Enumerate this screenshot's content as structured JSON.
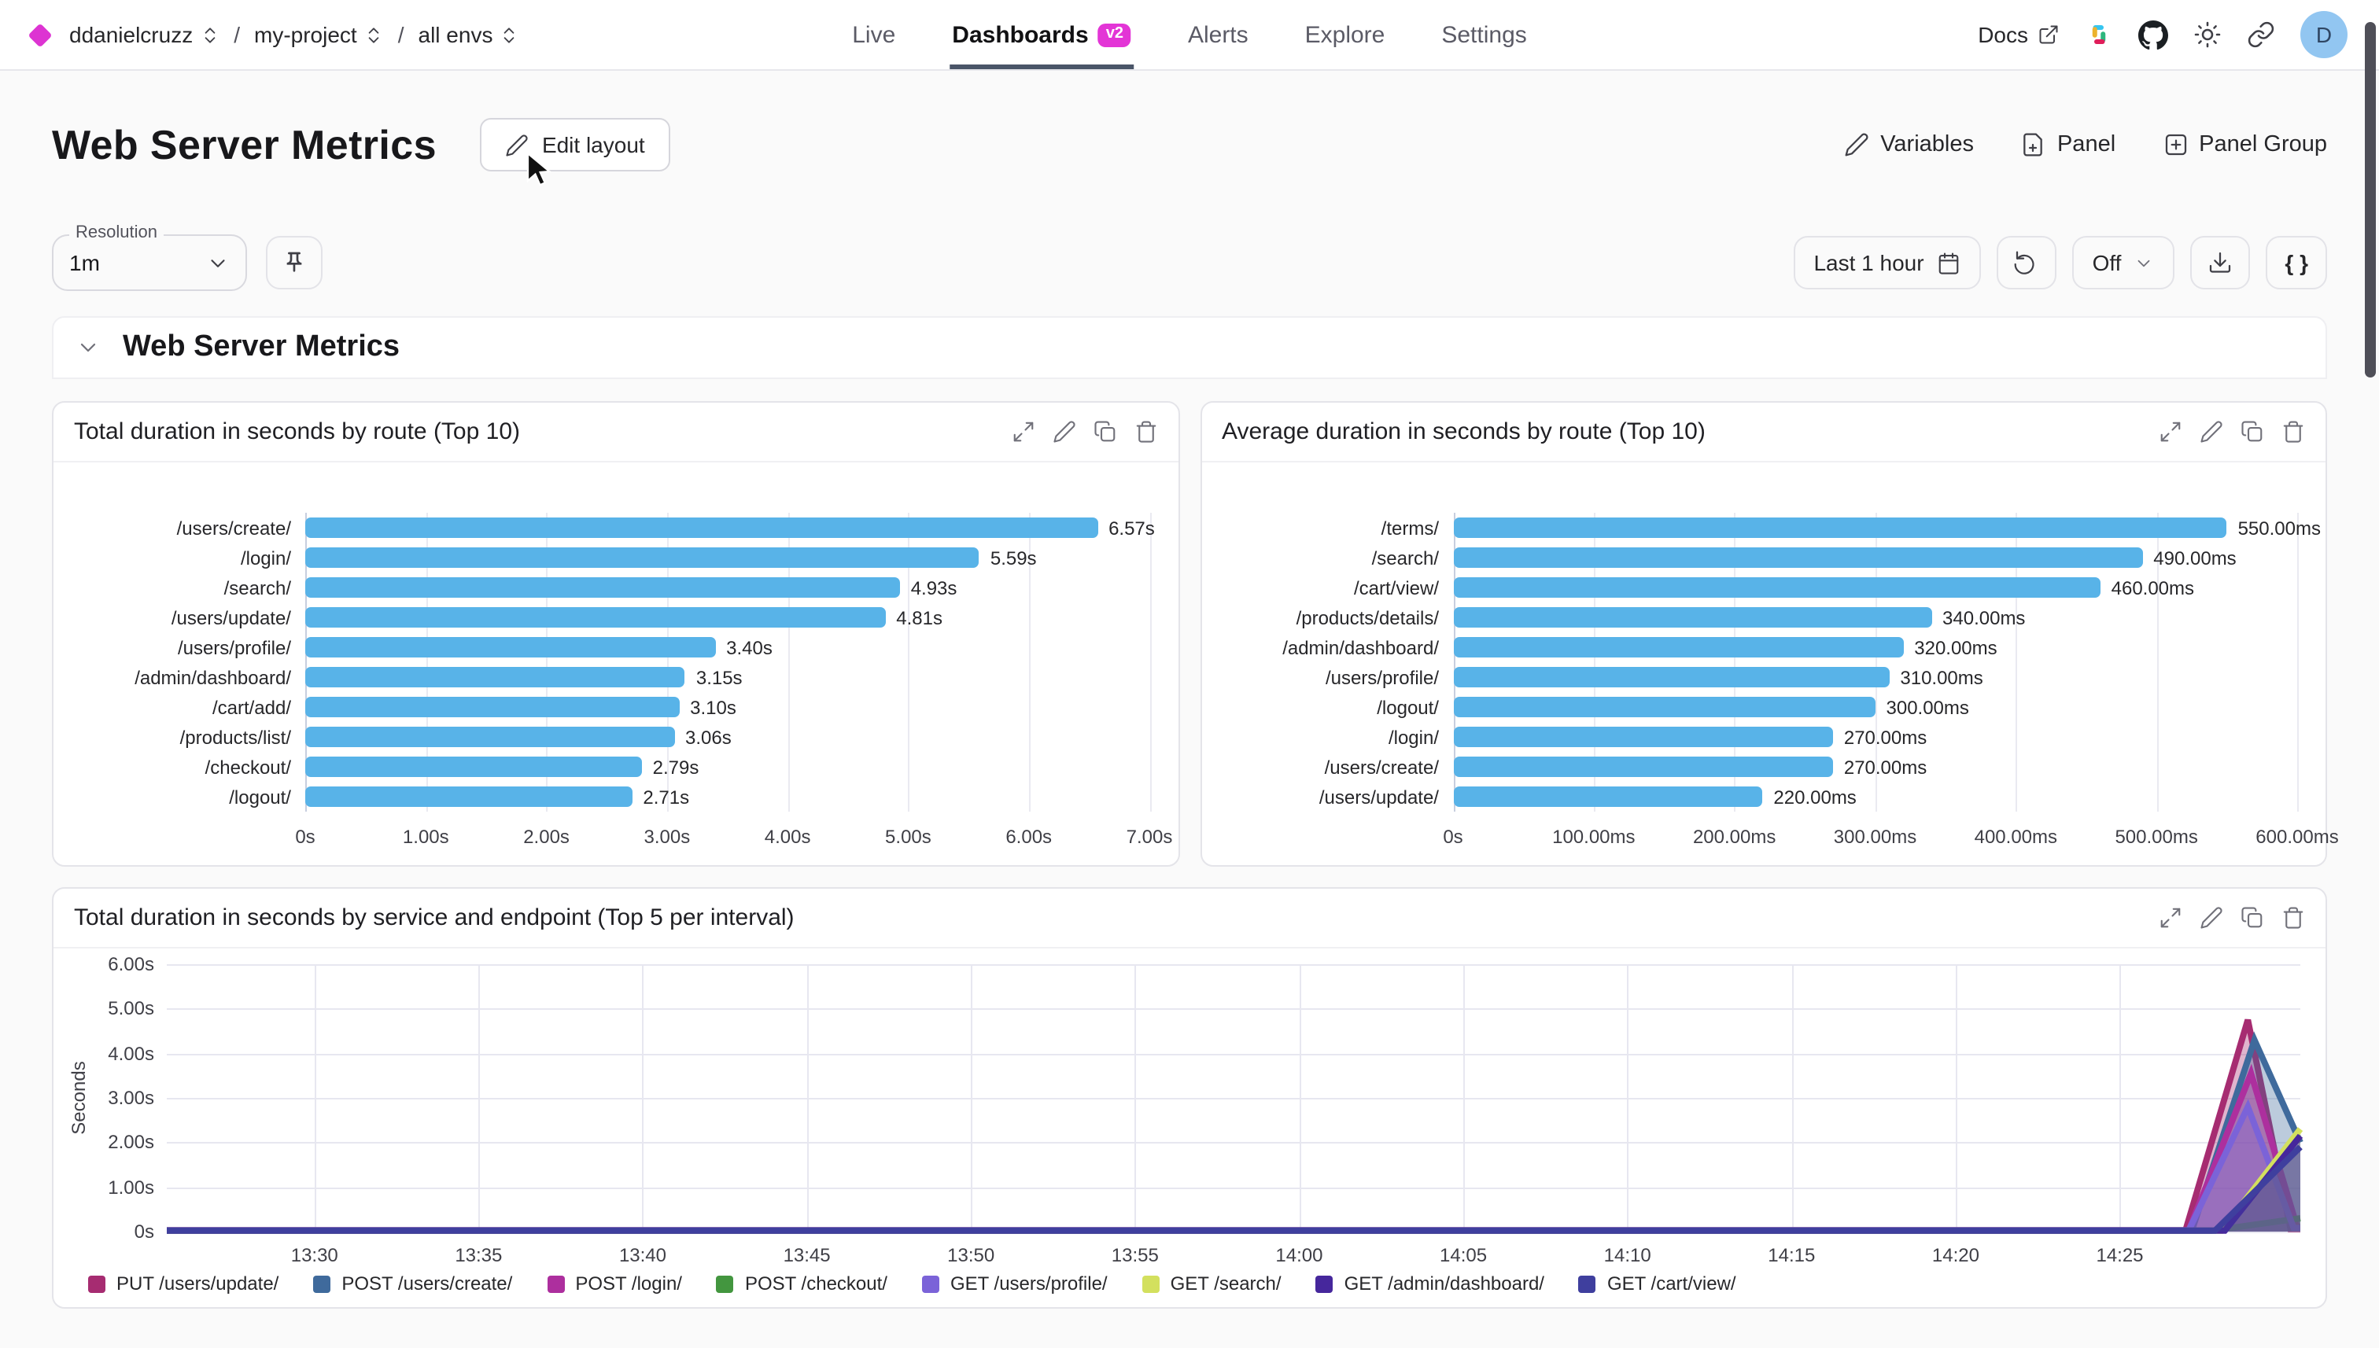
{
  "breadcrumb": {
    "org": "ddanielcruzz",
    "project": "my-project",
    "env": "all envs"
  },
  "nav": {
    "items": [
      {
        "label": "Live",
        "active": false
      },
      {
        "label": "Dashboards",
        "active": true,
        "badge": "v2"
      },
      {
        "label": "Alerts",
        "active": false
      },
      {
        "label": "Explore",
        "active": false
      },
      {
        "label": "Settings",
        "active": false
      }
    ]
  },
  "topright": {
    "docs": "Docs",
    "avatar_letter": "D"
  },
  "header": {
    "title": "Web Server Metrics",
    "edit_layout": "Edit layout",
    "variables": "Variables",
    "panel": "Panel",
    "panel_group": "Panel Group"
  },
  "toolbar": {
    "resolution_label": "Resolution",
    "resolution_value": "1m",
    "time_range": "Last 1 hour",
    "annotations_value": "Off",
    "code_button": "{ }"
  },
  "section": {
    "title": "Web Server Metrics"
  },
  "colors": {
    "accent_magenta": "#e335d6",
    "bar_blue": "#58b3e8",
    "active_underline": "#4a5568",
    "avatar_bg": "#92c6f1"
  },
  "chart_data": [
    {
      "type": "bar",
      "orientation": "horizontal",
      "title": "Total duration in seconds by route (Top 10)",
      "categories": [
        "/users/create/",
        "/login/",
        "/search/",
        "/users/update/",
        "/users/profile/",
        "/admin/dashboard/",
        "/cart/add/",
        "/products/list/",
        "/checkout/",
        "/logout/"
      ],
      "values": [
        6.57,
        5.59,
        4.93,
        4.81,
        3.4,
        3.15,
        3.1,
        3.06,
        2.79,
        2.71
      ],
      "value_labels": [
        "6.57s",
        "5.59s",
        "4.93s",
        "4.81s",
        "3.40s",
        "3.15s",
        "3.10s",
        "3.06s",
        "2.79s",
        "2.71s"
      ],
      "x_ticks": [
        "0s",
        "1.00s",
        "2.00s",
        "3.00s",
        "4.00s",
        "5.00s",
        "6.00s",
        "7.00s"
      ],
      "xlim": [
        0,
        7
      ],
      "bar_color": "#58b3e8",
      "grid": true
    },
    {
      "type": "bar",
      "orientation": "horizontal",
      "title": "Average duration in seconds by route (Top 10)",
      "categories": [
        "/terms/",
        "/search/",
        "/cart/view/",
        "/products/details/",
        "/admin/dashboard/",
        "/users/profile/",
        "/logout/",
        "/login/",
        "/users/create/",
        "/users/update/"
      ],
      "values": [
        550,
        490,
        460,
        340,
        320,
        310,
        300,
        270,
        270,
        220
      ],
      "value_labels": [
        "550.00ms",
        "490.00ms",
        "460.00ms",
        "340.00ms",
        "320.00ms",
        "310.00ms",
        "300.00ms",
        "270.00ms",
        "270.00ms",
        "220.00ms"
      ],
      "x_ticks": [
        "0s",
        "100.00ms",
        "200.00ms",
        "300.00ms",
        "400.00ms",
        "500.00ms",
        "600.00ms"
      ],
      "xlim": [
        0,
        600
      ],
      "bar_color": "#58b3e8",
      "grid": true
    },
    {
      "type": "area",
      "title": "Total duration in seconds by service and endpoint (Top 5 per interval)",
      "ylabel": "Seconds",
      "y_ticks": [
        "6.00s",
        "5.00s",
        "4.00s",
        "3.00s",
        "2.00s",
        "1.00s",
        "0s"
      ],
      "ylim": [
        0,
        6
      ],
      "x_ticks": [
        "13:30",
        "13:35",
        "13:40",
        "13:45",
        "13:50",
        "13:55",
        "14:00",
        "14:05",
        "14:10",
        "14:15",
        "14:20",
        "14:25"
      ],
      "x_tick_minutes": [
        0,
        5,
        10,
        15,
        20,
        25,
        30,
        35,
        40,
        45,
        50,
        55
      ],
      "x_domain_minutes": [
        -4.5,
        60.5
      ],
      "legend_position": "bottom",
      "grid": true,
      "series": [
        {
          "name": "PUT /users/update/",
          "color": "#a62c71",
          "points": [
            [
              -4.5,
              0.03
            ],
            [
              57.0,
              0.03
            ],
            [
              58.9,
              4.75
            ],
            [
              60.2,
              0.06
            ],
            [
              60.5,
              0.06
            ]
          ]
        },
        {
          "name": "POST /users/create/",
          "color": "#3f6a9c",
          "points": [
            [
              -4.5,
              0.03
            ],
            [
              57.2,
              0.03
            ],
            [
              59.1,
              4.3
            ],
            [
              60.5,
              2.0
            ]
          ]
        },
        {
          "name": "POST /login/",
          "color": "#ad2f9e",
          "points": [
            [
              -4.5,
              0.03
            ],
            [
              57.1,
              0.03
            ],
            [
              59.0,
              3.55
            ],
            [
              60.4,
              0.1
            ],
            [
              60.5,
              0.1
            ]
          ]
        },
        {
          "name": "POST /checkout/",
          "color": "#43963f",
          "points": [
            [
              -4.5,
              0.02
            ],
            [
              57.8,
              0.02
            ],
            [
              60.5,
              0.3
            ]
          ]
        },
        {
          "name": "GET /users/profile/",
          "color": "#7b63d8",
          "points": [
            [
              -4.5,
              0.03
            ],
            [
              57.1,
              0.03
            ],
            [
              58.9,
              2.8
            ],
            [
              60.3,
              0.08
            ],
            [
              60.5,
              0.08
            ]
          ]
        },
        {
          "name": "GET /search/",
          "color": "#d3e05e",
          "points": [
            [
              -4.5,
              0.02
            ],
            [
              58.1,
              0.02
            ],
            [
              60.5,
              2.3
            ]
          ]
        },
        {
          "name": "GET /admin/dashboard/",
          "color": "#46279c",
          "points": [
            [
              -4.5,
              0.02
            ],
            [
              58.2,
              0.02
            ],
            [
              60.5,
              2.15
            ]
          ]
        },
        {
          "name": "GET /cart/view/",
          "color": "#3f3f9e",
          "points": [
            [
              -4.5,
              0.02
            ],
            [
              57.9,
              0.02
            ],
            [
              60.5,
              1.9
            ]
          ]
        }
      ]
    }
  ]
}
